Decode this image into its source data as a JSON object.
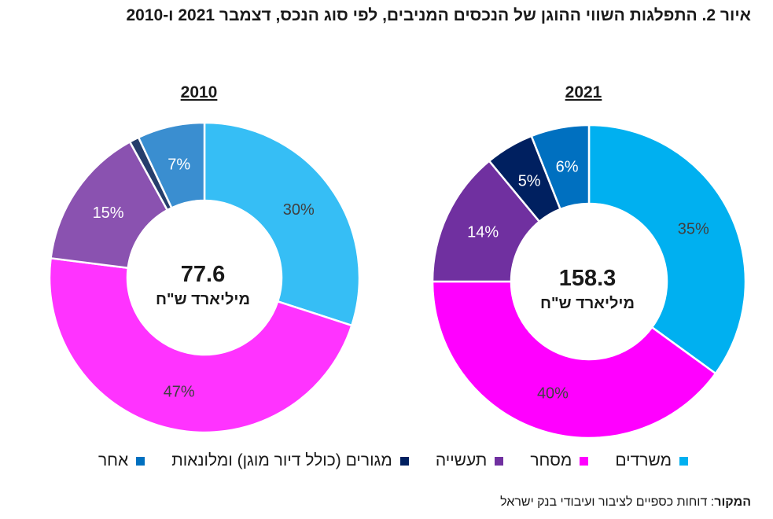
{
  "title": "איור 2. התפלגות השווי ההוגן של הנכסים המניבים, לפי סוג הנכס, דצמבר 2021 ו-2010",
  "chart_data": [
    {
      "type": "pie",
      "title": "2010",
      "center_value": "77.6",
      "center_unit": "מיליארד ש\"ח",
      "slices": [
        {
          "name": "משרדים",
          "value": 30,
          "label": "30%",
          "color": "#36BEF5"
        },
        {
          "name": "מסחר",
          "value": 47,
          "label": "47%",
          "color": "#FF33FF"
        },
        {
          "name": "תעשייה",
          "value": 15,
          "label": "15%",
          "color": "#8A52B0"
        },
        {
          "name": "מגורים (כולל דיור מוגן) ומלונאות",
          "value": 1,
          "label": "",
          "color": "#263E6B"
        },
        {
          "name": "אחר",
          "value": 7,
          "label": "7%",
          "color": "#3A8ED0"
        }
      ]
    },
    {
      "type": "pie",
      "title": "2021",
      "center_value": "158.3",
      "center_unit": "מיליארד ש\"ח",
      "slices": [
        {
          "name": "משרדים",
          "value": 35,
          "label": "35%",
          "color": "#00B0F0"
        },
        {
          "name": "מסחר",
          "value": 40,
          "label": "40%",
          "color": "#FF00FF"
        },
        {
          "name": "תעשייה",
          "value": 14,
          "label": "14%",
          "color": "#7030A0"
        },
        {
          "name": "מגורים (כולל דיור מוגן) ומלונאות",
          "value": 5,
          "label": "5%",
          "color": "#002060"
        },
        {
          "name": "אחר",
          "value": 6,
          "label": "6%",
          "color": "#0070C0"
        }
      ]
    }
  ],
  "legend": [
    {
      "label": "משרדים",
      "color": "#00B0F0"
    },
    {
      "label": "מסחר",
      "color": "#FF00FF"
    },
    {
      "label": "תעשייה",
      "color": "#7030A0"
    },
    {
      "label": "מגורים (כולל דיור מוגן) ומלונאות",
      "color": "#002060"
    },
    {
      "label": "אחר",
      "color": "#0070C0"
    }
  ],
  "source": {
    "label": "המקור",
    "text": ": דוחות כספיים לציבור ועיבודי בנק ישראל"
  }
}
